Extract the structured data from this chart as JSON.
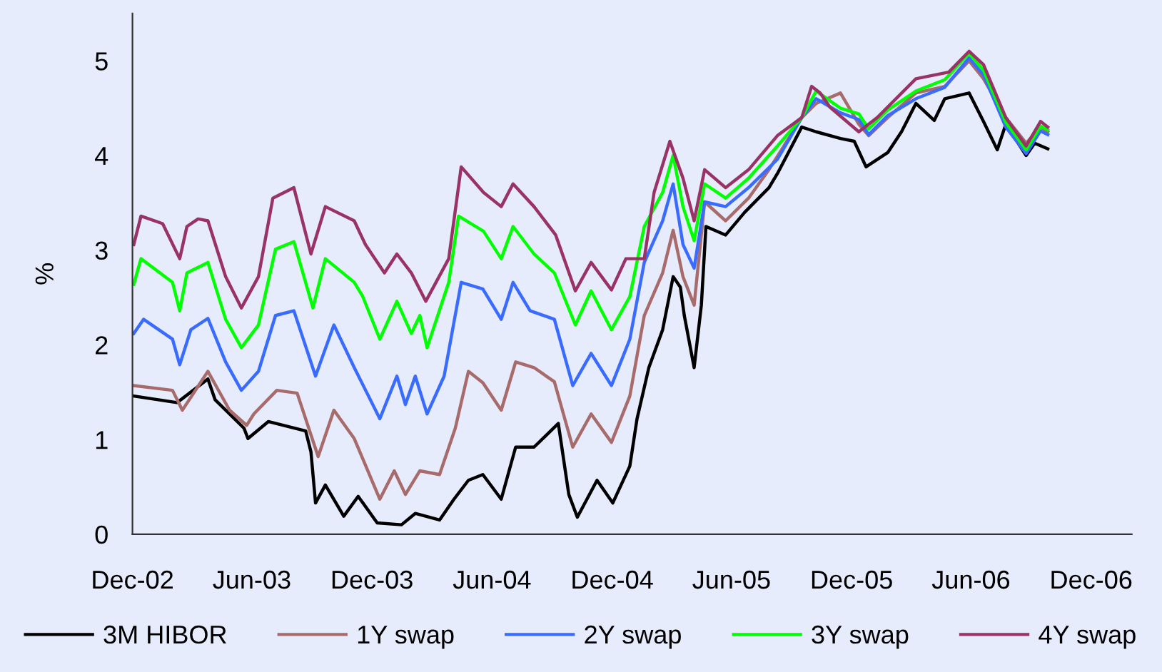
{
  "chart_data": {
    "type": "line",
    "ylabel": "%",
    "ylim": [
      0,
      5.5
    ],
    "yticks": [
      0,
      1,
      2,
      3,
      4,
      5
    ],
    "xlim": [
      "2002-12-01",
      "2007-02-01"
    ],
    "xticks": [
      {
        "value": "2002-12-01",
        "label": "Dec-02"
      },
      {
        "value": "2003-06-01",
        "label": "Jun-03"
      },
      {
        "value": "2003-12-01",
        "label": "Dec-03"
      },
      {
        "value": "2004-06-01",
        "label": "Jun-04"
      },
      {
        "value": "2004-12-01",
        "label": "Dec-04"
      },
      {
        "value": "2005-06-01",
        "label": "Jun-05"
      },
      {
        "value": "2005-12-01",
        "label": "Dec-05"
      },
      {
        "value": "2006-06-01",
        "label": "Jun-06"
      },
      {
        "value": "2006-12-01",
        "label": "Dec-06"
      }
    ],
    "grid": false,
    "legend": "bottom",
    "marker": "none",
    "line_style": "solid",
    "series": [
      {
        "name": "3M HIBOR",
        "color": "#000000",
        "x": [
          "2002-12-03",
          "2003-02-07",
          "2003-03-26",
          "2003-04-06",
          "2003-05-20",
          "2003-05-26",
          "2003-06-26",
          "2003-08-22",
          "2003-08-30",
          "2003-09-06",
          "2003-09-21",
          "2003-10-19",
          "2003-11-10",
          "2003-12-09",
          "2004-01-15",
          "2004-02-05",
          "2004-03-13",
          "2004-04-04",
          "2004-04-26",
          "2004-05-18",
          "2004-06-15",
          "2004-07-07",
          "2004-08-04",
          "2004-09-10",
          "2004-09-26",
          "2004-10-09",
          "2004-11-08",
          "2004-12-02",
          "2004-12-28",
          "2005-01-08",
          "2005-01-26",
          "2005-02-16",
          "2005-03-04",
          "2005-03-15",
          "2005-03-21",
          "2005-04-05",
          "2005-04-16",
          "2005-04-23",
          "2005-05-23",
          "2005-06-21",
          "2005-07-28",
          "2005-08-10",
          "2005-09-16",
          "2005-10-08",
          "2005-11-14",
          "2005-12-05",
          "2005-12-23",
          "2006-01-25",
          "2006-02-15",
          "2006-03-09",
          "2006-04-06",
          "2006-04-22",
          "2006-05-29",
          "2006-06-20",
          "2006-07-11",
          "2006-07-24",
          "2006-08-24",
          "2006-09-06",
          "2006-09-26"
        ],
        "values": [
          1.46,
          1.39,
          1.64,
          1.42,
          1.12,
          1.01,
          1.19,
          1.09,
          0.87,
          0.33,
          0.52,
          0.19,
          0.4,
          0.12,
          0.1,
          0.22,
          0.15,
          0.37,
          0.57,
          0.63,
          0.37,
          0.92,
          0.92,
          1.17,
          0.42,
          0.18,
          0.57,
          0.33,
          0.72,
          1.22,
          1.76,
          2.16,
          2.72,
          2.61,
          2.31,
          1.76,
          2.42,
          3.25,
          3.16,
          3.4,
          3.66,
          3.81,
          4.3,
          4.25,
          4.18,
          4.15,
          3.88,
          4.03,
          4.25,
          4.55,
          4.37,
          4.6,
          4.66,
          4.36,
          4.06,
          4.33,
          4.0,
          4.13,
          4.07
        ]
      },
      {
        "name": "1Y swap",
        "color": "#a86b6b",
        "x": [
          "2002-12-03",
          "2003-01-31",
          "2003-02-15",
          "2003-03-26",
          "2003-04-28",
          "2003-05-24",
          "2003-06-04",
          "2003-07-09",
          "2003-08-09",
          "2003-09-10",
          "2003-10-04",
          "2003-11-04",
          "2003-12-13",
          "2004-01-04",
          "2004-01-21",
          "2004-02-12",
          "2004-03-13",
          "2004-04-06",
          "2004-04-26",
          "2004-05-18",
          "2004-06-15",
          "2004-07-07",
          "2004-08-04",
          "2004-09-04",
          "2004-10-02",
          "2004-10-30",
          "2004-11-30",
          "2004-12-28",
          "2005-01-19",
          "2005-02-16",
          "2005-03-04",
          "2005-03-19",
          "2005-04-05",
          "2005-04-21",
          "2005-05-23",
          "2005-06-27",
          "2005-07-28",
          "2005-09-16",
          "2005-10-08",
          "2005-11-14",
          "2005-12-12",
          "2005-12-27",
          "2006-01-25",
          "2006-03-09",
          "2006-04-22",
          "2006-05-29",
          "2006-06-20",
          "2006-07-24",
          "2006-08-24",
          "2006-09-15",
          "2006-09-26"
        ],
        "values": [
          1.57,
          1.52,
          1.31,
          1.72,
          1.31,
          1.15,
          1.27,
          1.52,
          1.49,
          0.82,
          1.31,
          1.01,
          0.37,
          0.67,
          0.42,
          0.67,
          0.63,
          1.12,
          1.72,
          1.6,
          1.31,
          1.82,
          1.76,
          1.61,
          0.92,
          1.27,
          0.97,
          1.46,
          2.31,
          2.76,
          3.21,
          2.72,
          2.42,
          3.51,
          3.31,
          3.55,
          3.85,
          4.4,
          4.55,
          4.66,
          4.33,
          4.21,
          4.4,
          4.66,
          4.73,
          5.0,
          4.81,
          4.4,
          4.13,
          4.3,
          4.25
        ]
      },
      {
        "name": "2Y swap",
        "color": "#3a6bff",
        "x": [
          "2002-12-03",
          "2002-12-18",
          "2003-01-31",
          "2003-02-11",
          "2003-02-28",
          "2003-03-26",
          "2003-04-22",
          "2003-05-16",
          "2003-06-11",
          "2003-07-07",
          "2003-08-04",
          "2003-09-06",
          "2003-10-04",
          "2003-11-04",
          "2003-12-13",
          "2004-01-08",
          "2004-01-21",
          "2004-02-05",
          "2004-02-23",
          "2004-03-20",
          "2004-04-15",
          "2004-05-18",
          "2004-06-15",
          "2004-07-03",
          "2004-07-29",
          "2004-09-04",
          "2004-10-02",
          "2004-10-30",
          "2004-11-30",
          "2004-12-28",
          "2005-01-19",
          "2005-02-16",
          "2005-03-04",
          "2005-03-19",
          "2005-04-05",
          "2005-04-21",
          "2005-05-23",
          "2005-06-27",
          "2005-08-10",
          "2005-09-16",
          "2005-10-08",
          "2005-11-14",
          "2005-12-12",
          "2005-12-27",
          "2006-01-25",
          "2006-03-09",
          "2006-04-22",
          "2006-05-29",
          "2006-06-20",
          "2006-07-24",
          "2006-08-24",
          "2006-09-15",
          "2006-09-26"
        ],
        "values": [
          2.12,
          2.27,
          2.06,
          1.79,
          2.16,
          2.28,
          1.82,
          1.52,
          1.72,
          2.31,
          2.36,
          1.67,
          2.21,
          1.76,
          1.22,
          1.67,
          1.37,
          1.67,
          1.27,
          1.67,
          2.66,
          2.59,
          2.27,
          2.66,
          2.36,
          2.27,
          1.57,
          1.91,
          1.57,
          2.06,
          2.87,
          3.31,
          3.7,
          3.06,
          2.81,
          3.51,
          3.46,
          3.66,
          3.96,
          4.4,
          4.6,
          4.45,
          4.38,
          4.22,
          4.42,
          4.6,
          4.72,
          5.03,
          4.85,
          4.3,
          4.02,
          4.26,
          4.22
        ]
      },
      {
        "name": "3Y swap",
        "color": "#00ff00",
        "x": [
          "2002-12-03",
          "2002-12-14",
          "2003-01-31",
          "2003-02-11",
          "2003-02-22",
          "2003-03-26",
          "2003-04-22",
          "2003-05-16",
          "2003-06-11",
          "2003-07-07",
          "2003-08-04",
          "2003-09-02",
          "2003-09-21",
          "2003-11-04",
          "2003-11-17",
          "2003-12-13",
          "2004-01-08",
          "2004-01-30",
          "2004-02-12",
          "2004-02-23",
          "2004-03-27",
          "2004-04-11",
          "2004-05-19",
          "2004-06-15",
          "2004-07-03",
          "2004-08-04",
          "2004-09-04",
          "2004-10-06",
          "2004-10-30",
          "2004-11-30",
          "2004-12-28",
          "2005-01-19",
          "2005-02-16",
          "2005-03-04",
          "2005-03-19",
          "2005-04-05",
          "2005-04-21",
          "2005-05-23",
          "2005-06-27",
          "2005-08-10",
          "2005-09-16",
          "2005-10-08",
          "2005-11-14",
          "2005-12-12",
          "2005-12-27",
          "2006-01-25",
          "2006-03-09",
          "2006-04-22",
          "2006-05-29",
          "2006-06-20",
          "2006-07-24",
          "2006-08-24",
          "2006-09-15",
          "2006-09-26"
        ],
        "values": [
          2.64,
          2.91,
          2.66,
          2.36,
          2.76,
          2.87,
          2.27,
          1.97,
          2.21,
          3.01,
          3.09,
          2.39,
          2.91,
          2.66,
          2.51,
          2.06,
          2.46,
          2.12,
          2.31,
          1.97,
          2.66,
          3.36,
          3.2,
          2.91,
          3.25,
          2.96,
          2.76,
          2.21,
          2.57,
          2.16,
          2.51,
          3.25,
          3.61,
          4.0,
          3.46,
          3.1,
          3.7,
          3.55,
          3.76,
          4.1,
          4.4,
          4.68,
          4.5,
          4.44,
          4.28,
          4.48,
          4.68,
          4.8,
          5.08,
          4.9,
          4.35,
          4.06,
          4.31,
          4.27
        ]
      },
      {
        "name": "4Y swap",
        "color": "#993366",
        "x": [
          "2002-12-03",
          "2002-12-14",
          "2003-01-16",
          "2003-02-11",
          "2003-02-22",
          "2003-03-11",
          "2003-03-26",
          "2003-04-22",
          "2003-05-16",
          "2003-06-11",
          "2003-07-03",
          "2003-08-04",
          "2003-08-30",
          "2003-09-21",
          "2003-11-04",
          "2003-11-21",
          "2003-12-20",
          "2004-01-08",
          "2004-01-30",
          "2004-02-21",
          "2004-03-27",
          "2004-04-15",
          "2004-05-19",
          "2004-06-15",
          "2004-07-03",
          "2004-08-04",
          "2004-09-06",
          "2004-10-06",
          "2004-10-30",
          "2004-11-30",
          "2004-12-22",
          "2005-01-19",
          "2005-02-03",
          "2005-02-27",
          "2005-03-19",
          "2005-04-05",
          "2005-04-21",
          "2005-05-23",
          "2005-06-27",
          "2005-08-10",
          "2005-09-16",
          "2005-10-01",
          "2005-10-14",
          "2005-10-29",
          "2005-12-12",
          "2006-01-09",
          "2006-03-09",
          "2006-04-28",
          "2006-05-29",
          "2006-06-20",
          "2006-07-24",
          "2006-08-24",
          "2006-09-15",
          "2006-09-26"
        ],
        "values": [
          3.06,
          3.36,
          3.28,
          2.91,
          3.25,
          3.33,
          3.31,
          2.72,
          2.39,
          2.72,
          3.55,
          3.66,
          2.96,
          3.46,
          3.31,
          3.06,
          2.76,
          2.96,
          2.76,
          2.46,
          2.91,
          3.88,
          3.61,
          3.46,
          3.7,
          3.46,
          3.16,
          2.57,
          2.87,
          2.58,
          2.91,
          2.91,
          3.61,
          4.15,
          3.76,
          3.31,
          3.85,
          3.66,
          3.85,
          4.21,
          4.4,
          4.73,
          4.66,
          4.51,
          4.25,
          4.4,
          4.81,
          4.88,
          5.1,
          4.96,
          4.4,
          4.1,
          4.36,
          4.3
        ]
      }
    ]
  }
}
